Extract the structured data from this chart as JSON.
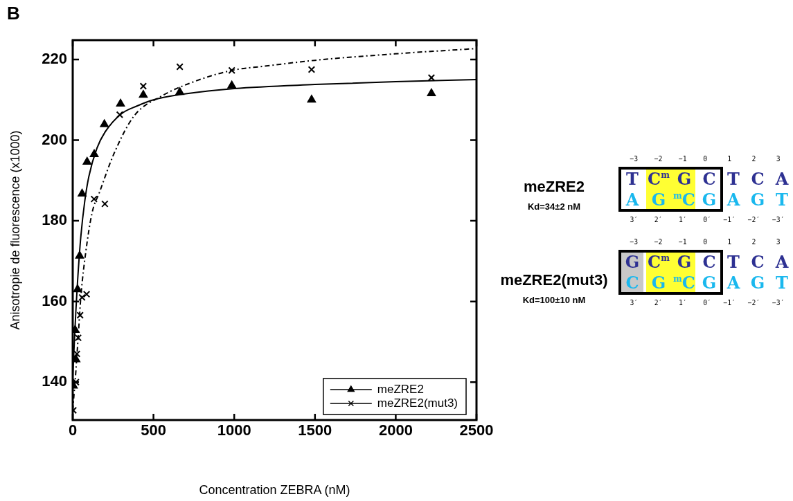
{
  "chart_data": [
    {
      "type": "scatter",
      "xlabel": "Concentration ZEBRA (nM)",
      "ylabel": "Anisotropie de fluorescence (x1000)",
      "annotations": [
        "B"
      ],
      "xlim": [
        0,
        2500
      ],
      "ylim": [
        130.6,
        224.8
      ],
      "xticks": [
        0,
        500,
        1000,
        1500,
        2000,
        2500
      ],
      "yticks": [
        140,
        160,
        180,
        200,
        220
      ],
      "grid": false,
      "legend": "bottom right",
      "series": [
        {
          "name": "meZRE2",
          "type": "scatter",
          "marker": "triangle",
          "color": "#000000",
          "x": [
            4,
            15,
            20,
            30,
            43,
            58,
            89,
            133,
            196,
            296,
            437,
            663,
            985,
            1479,
            2221
          ],
          "values": [
            139.1,
            152.9,
            145.6,
            163,
            171.3,
            186.7,
            194.6,
            196.5,
            203.9,
            209,
            211.2,
            211.9,
            213.5,
            210,
            211.6
          ]
        },
        {
          "name": "meZRE2(mut3)",
          "type": "scatter",
          "marker": "cross",
          "color": "#000000",
          "x": [
            4,
            20,
            26,
            34,
            46,
            58,
            86,
            132,
            199,
            291,
            437,
            663,
            985,
            1479,
            2221
          ],
          "values": [
            133,
            140,
            147,
            151,
            156.6,
            161,
            161.8,
            185.4,
            184.2,
            206.3,
            213.4,
            218.2,
            217.3,
            217.5,
            215.5
          ]
        },
        {
          "type": "line",
          "marker": "none",
          "line_style": "solid",
          "color": "#000000",
          "x": [
            0,
            10,
            20,
            30,
            50,
            75,
            100,
            150,
            200,
            300,
            400,
            500,
            700,
            1000,
            1500,
            2000,
            2500
          ],
          "values": [
            141,
            150,
            158,
            165,
            176,
            185,
            191,
            198,
            202,
            206.5,
            208.5,
            210,
            211.5,
            212.8,
            213.8,
            214.5,
            215
          ]
        },
        {
          "type": "line",
          "marker": "none",
          "line_style": "dashed",
          "color": "#000000",
          "x": [
            0,
            20,
            35,
            51,
            80,
            120,
            165,
            257,
            380,
            549,
            717,
            985,
            1179,
            1500,
            1994,
            2496
          ],
          "values": [
            133,
            143,
            152,
            161.5,
            172,
            182,
            187,
            196.8,
            206,
            210.9,
            214,
            217.3,
            218.3,
            219.8,
            221.4,
            222.7
          ]
        }
      ]
    },
    {
      "type": "other",
      "annotations": [
        "meZRE2",
        "Kd=34±2 nM",
        "−3 −2 −1 0 1 2 3",
        "T C$^{m}$ G C T C A",
        "A G $^{m}$C G A G T",
        "3′ 2′ 1′ 0′ −1′ −2′ −3′",
        "meZRE2(mut3)",
        "Kd=100±10 nM",
        "−3 −2 −1 0 1 2 3",
        "G C$^{m}$ G C T C A",
        "C G $^{m}$C G A G T",
        "3′ 2′ 1′ 0′ −1′ −2′ −3′"
      ]
    }
  ]
}
